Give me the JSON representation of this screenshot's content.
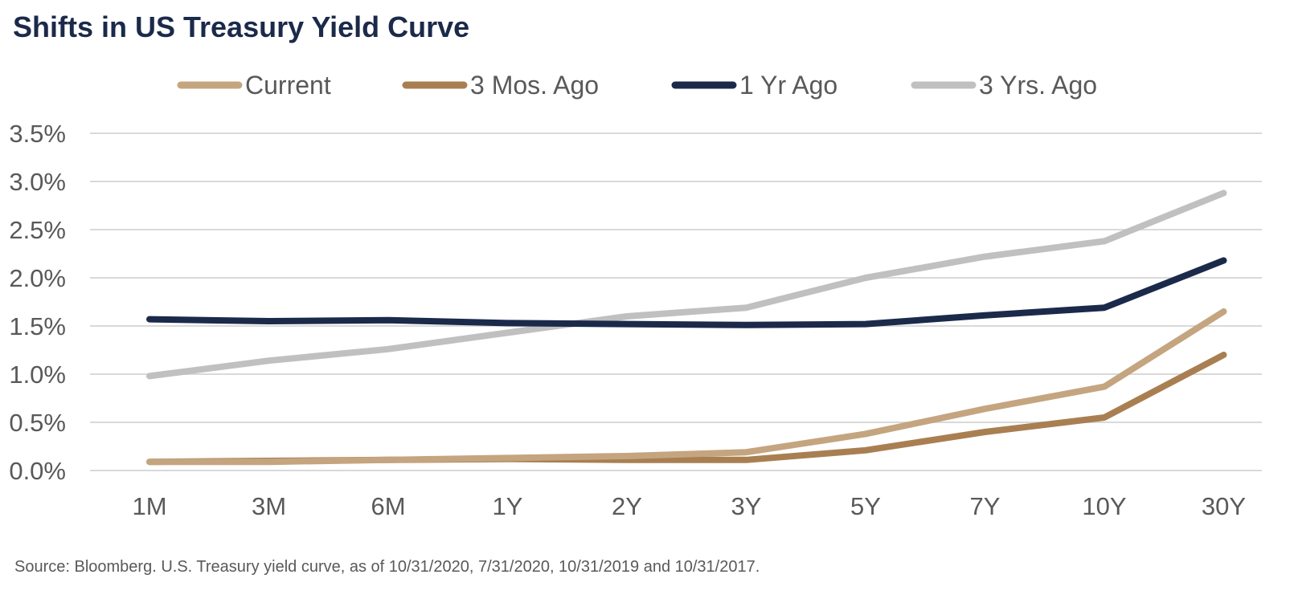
{
  "chart_data": {
    "type": "line",
    "title": "Shifts in US Treasury Yield Curve",
    "source": "Source: Bloomberg. U.S. Treasury yield curve, as of 10/31/2020, 7/31/2020, 10/31/2019 and 10/31/2017.",
    "categories": [
      "1M",
      "3M",
      "6M",
      "1Y",
      "2Y",
      "3Y",
      "5Y",
      "7Y",
      "10Y",
      "30Y"
    ],
    "y_ticks": [
      "0.0%",
      "0.5%",
      "1.0%",
      "1.5%",
      "2.0%",
      "2.5%",
      "3.0%",
      "3.5%"
    ],
    "ylim": [
      0,
      3.5
    ],
    "grid": true,
    "legend_position": "top",
    "series": [
      {
        "name": "Current",
        "color": "#c4a57f",
        "values": [
          0.09,
          0.09,
          0.11,
          0.13,
          0.15,
          0.19,
          0.38,
          0.64,
          0.87,
          1.65
        ]
      },
      {
        "name": "3 Mos. Ago",
        "color": "#a97f52",
        "values": [
          0.09,
          0.1,
          0.11,
          0.12,
          0.11,
          0.11,
          0.21,
          0.4,
          0.55,
          1.2
        ]
      },
      {
        "name": "1 Yr Ago",
        "color": "#1b2a4a",
        "values": [
          1.57,
          1.55,
          1.56,
          1.53,
          1.52,
          1.51,
          1.52,
          1.61,
          1.69,
          2.18
        ]
      },
      {
        "name": "3 Yrs. Ago",
        "color": "#c0c0c0",
        "values": [
          0.98,
          1.14,
          1.26,
          1.43,
          1.6,
          1.69,
          2.0,
          2.22,
          2.38,
          2.88
        ]
      }
    ]
  }
}
